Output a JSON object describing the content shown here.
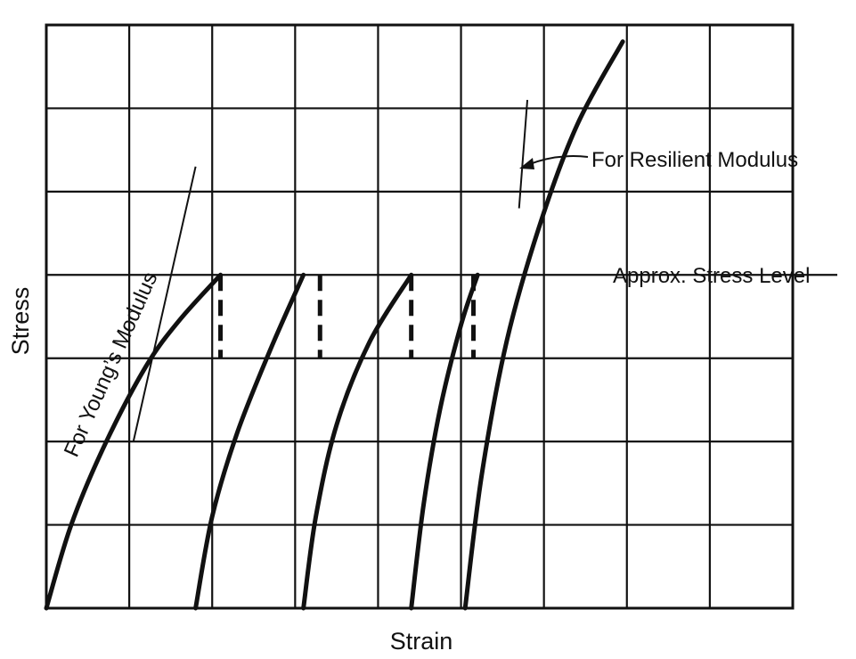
{
  "chart_data": {
    "type": "line",
    "title": "",
    "xlabel": "Strain",
    "ylabel": "Stress",
    "xlim": [
      0,
      9
    ],
    "ylim": [
      0,
      7
    ],
    "grid": true,
    "legend": "none",
    "x_ticks": [
      1,
      2,
      3,
      4,
      5,
      6,
      7,
      8
    ],
    "y_ticks": [
      1,
      2,
      3,
      4,
      5,
      6
    ],
    "stress_level": 4,
    "stress_level_label": "Approx. Stress Level",
    "series": [
      {
        "x": [
          0,
          0.3,
          0.7,
          1.2,
          1.6,
          2.1
        ],
        "y": [
          0,
          1,
          1.95,
          2.9,
          3.45,
          4
        ]
      },
      {
        "x": [
          1.8,
          2.0,
          2.3,
          2.7,
          3.1
        ],
        "y": [
          0,
          1.1,
          2.1,
          3.1,
          4
        ]
      },
      {
        "x": [
          3.1,
          3.25,
          3.5,
          3.9,
          4.4
        ],
        "y": [
          0,
          1.1,
          2.2,
          3.2,
          4
        ]
      },
      {
        "x": [
          4.4,
          4.55,
          4.75,
          5.0,
          5.2
        ],
        "y": [
          0,
          1.25,
          2.4,
          3.4,
          4
        ]
      },
      {
        "x": [
          5.05,
          5.25,
          5.55,
          5.95,
          6.4,
          6.95
        ],
        "y": [
          0,
          1.6,
          3.2,
          4.6,
          5.8,
          6.8
        ]
      }
    ],
    "unload_drops": [
      {
        "x": 2.1,
        "from": 4,
        "to": 3
      },
      {
        "x": 3.3,
        "from": 4,
        "to": 3
      },
      {
        "x": 4.4,
        "from": 4,
        "to": 3
      },
      {
        "x": 5.15,
        "from": 4,
        "to": 3
      }
    ],
    "tangent_lines": [
      {
        "label": "For Young's Modulus",
        "x": [
          1.05,
          1.8
        ],
        "y": [
          2.0,
          5.3
        ]
      },
      {
        "label": "For Resilient Modulus",
        "x": [
          5.7,
          5.8
        ],
        "y": [
          4.8,
          6.1
        ]
      }
    ],
    "annotations": {
      "youngs": "For Young’s Modulus",
      "resilient": "For Resilient Modulus",
      "stress_level": "Approx. Stress Level"
    }
  }
}
